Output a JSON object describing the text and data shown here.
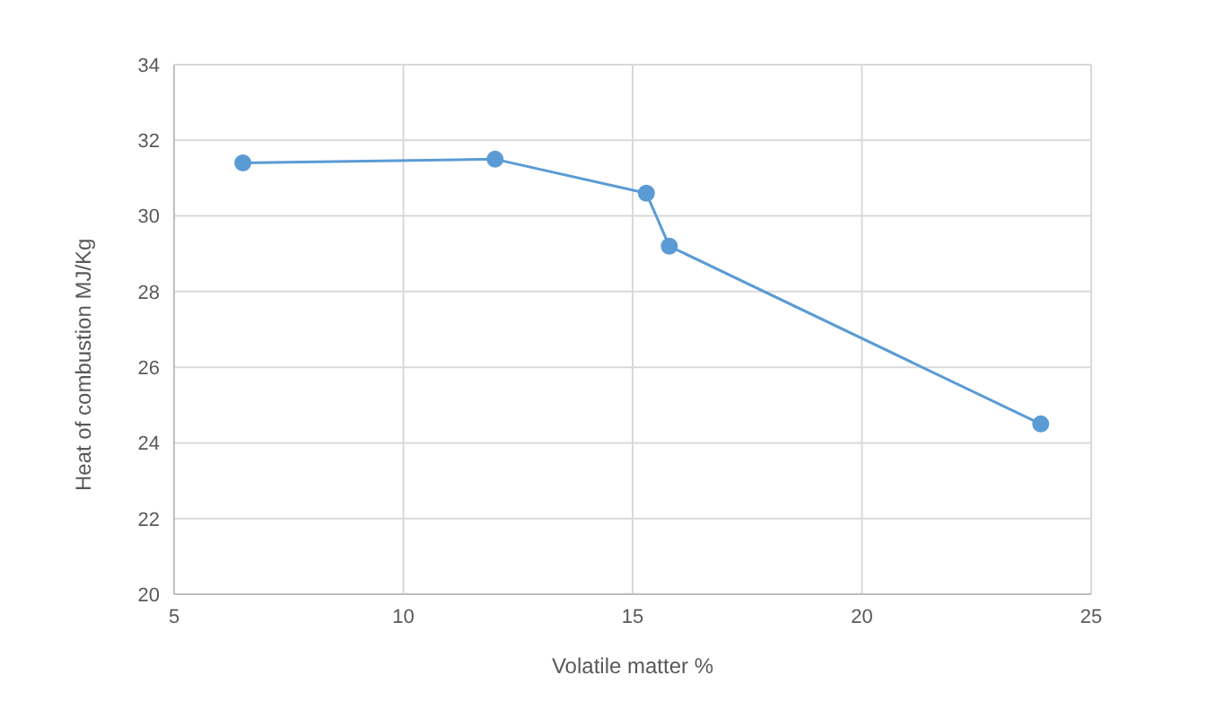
{
  "chart_data": {
    "type": "line",
    "xlabel": "Volatile matter %",
    "ylabel": "Heat of combustion MJ/Kg",
    "x": [
      6.5,
      12.0,
      15.3,
      15.8,
      23.9
    ],
    "series": [
      {
        "color": "#5b9bd5",
        "values": [
          31.4,
          31.5,
          30.6,
          29.2,
          24.5
        ]
      }
    ],
    "xlim": [
      5,
      25
    ],
    "xticks": [
      5,
      10,
      15,
      20,
      25
    ],
    "ylim": [
      20,
      34
    ],
    "yticks": [
      20,
      22,
      24,
      26,
      28,
      30,
      32,
      34
    ],
    "grid": true,
    "marker": "circle",
    "line_style": "solid"
  }
}
